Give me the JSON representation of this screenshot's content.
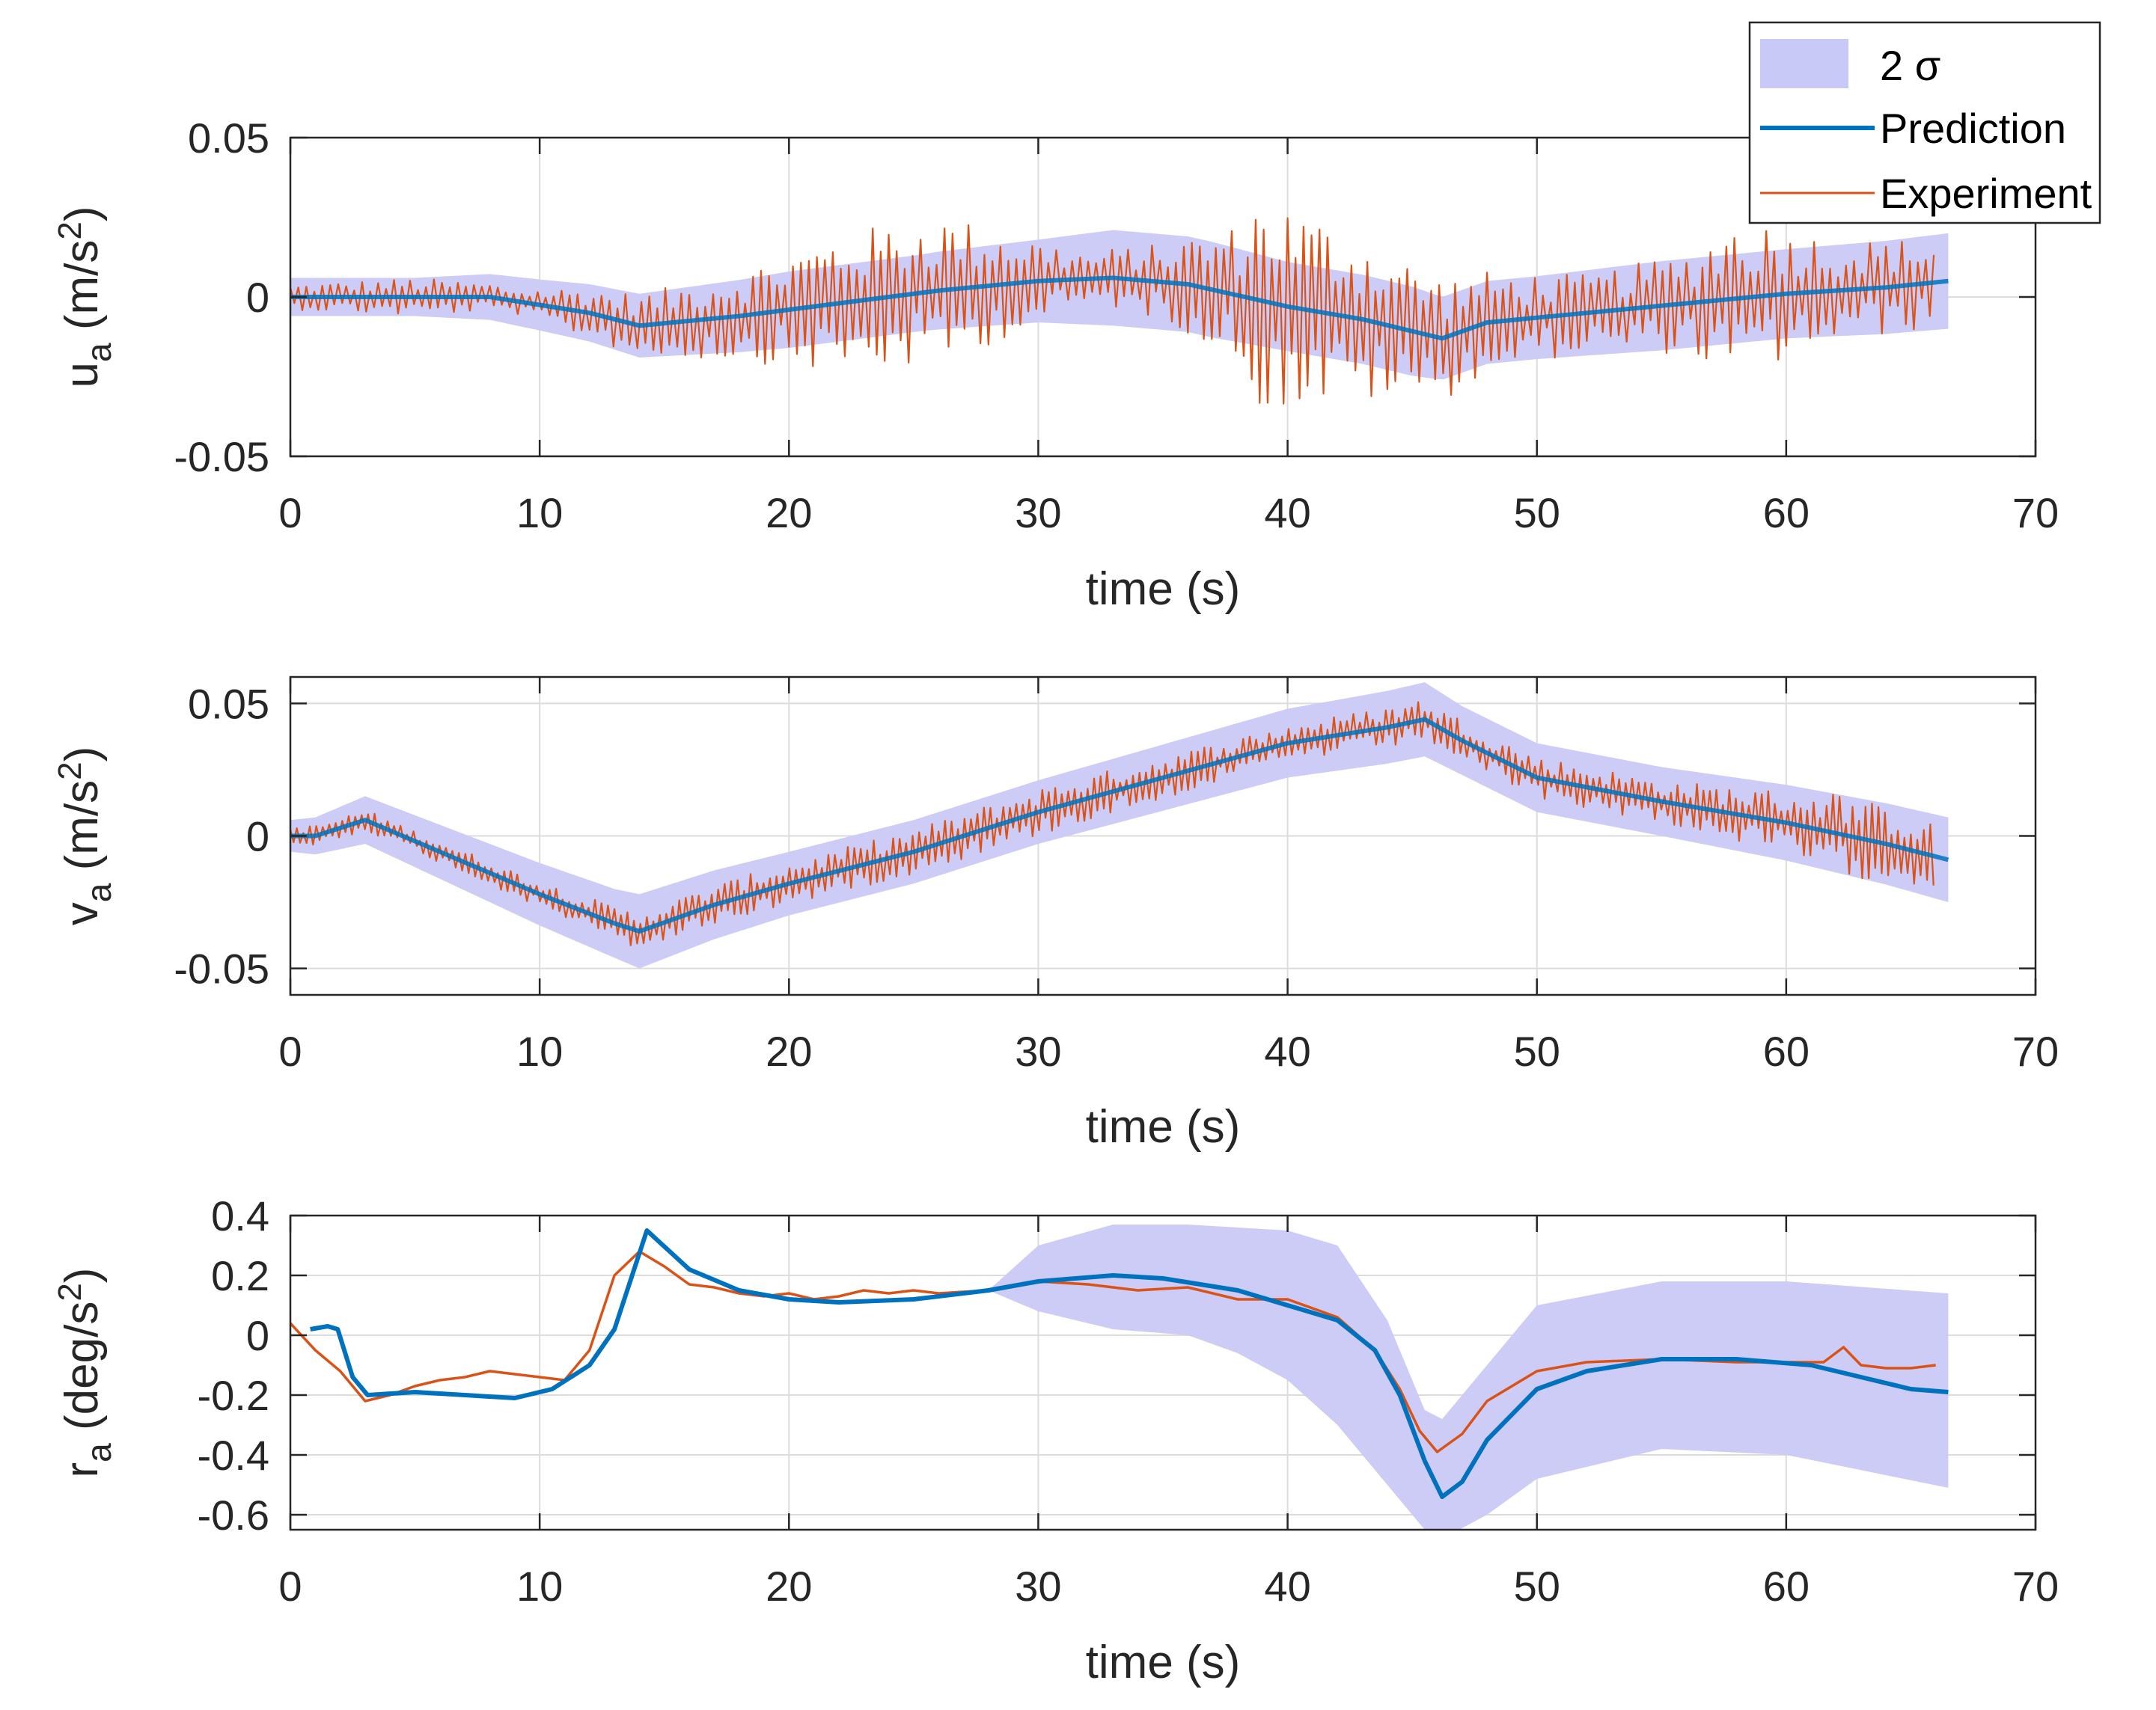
{
  "colors": {
    "band": "#c9c9f7",
    "prediction": "#0072bd",
    "experiment": "#d95319",
    "axis": "#262626",
    "grid": "#dcdcdc"
  },
  "legend": {
    "band_label": "2 σ",
    "prediction_label": "Prediction",
    "experiment_label": "Experiment",
    "placement": "top-right"
  },
  "chart_data": [
    {
      "type": "line",
      "id": "ua",
      "ylabel_main": "u",
      "ylabel_sub": "a",
      "ylabel_unit_pre": " (m/s",
      "ylabel_unit_sup": "2",
      "ylabel_unit_post": ")",
      "xlabel": "time (s)",
      "xlim": [
        0,
        70
      ],
      "ylim": [
        -0.05,
        0.05
      ],
      "xticks": [
        0,
        10,
        20,
        30,
        40,
        50,
        60,
        70
      ],
      "xtick_labels": [
        "0",
        "10",
        "20",
        "30",
        "40",
        "50",
        "60",
        "70"
      ],
      "yticks": [
        -0.05,
        0,
        0.05
      ],
      "ytick_labels": [
        "-0.05",
        "0",
        "0.05"
      ],
      "grid": true,
      "prediction": {
        "x": [
          0,
          3,
          8,
          12,
          14,
          18,
          22,
          26,
          30,
          33,
          36,
          40,
          43,
          46.2,
          48,
          52,
          56,
          60,
          64,
          66.5
        ],
        "y": [
          0,
          0,
          0,
          -0.005,
          -0.009,
          -0.006,
          -0.002,
          0.002,
          0.005,
          0.006,
          0.004,
          -0.003,
          -0.007,
          -0.013,
          -0.008,
          -0.005,
          -0.002,
          0.001,
          0.003,
          0.005
        ]
      },
      "band": {
        "x": [
          0,
          5,
          10,
          14,
          20,
          25,
          30,
          33,
          37,
          40,
          45,
          46.2,
          50,
          55,
          60,
          66.5
        ],
        "half_width": [
          0.006,
          0.006,
          0.008,
          0.01,
          0.012,
          0.012,
          0.013,
          0.015,
          0.015,
          0.014,
          0.014,
          0.013,
          0.013,
          0.014,
          0.014,
          0.015
        ]
      },
      "experiment": {
        "noise_x": [
          0,
          5,
          9,
          12,
          18,
          22,
          26,
          29,
          32,
          35,
          38,
          39,
          42,
          45,
          48,
          52,
          56,
          58,
          62,
          66
        ],
        "noise_amp": [
          0.004,
          0.006,
          0.004,
          0.008,
          0.014,
          0.022,
          0.024,
          0.016,
          0.008,
          0.012,
          0.022,
          0.035,
          0.028,
          0.022,
          0.016,
          0.012,
          0.016,
          0.026,
          0.016,
          0.014
        ],
        "period": 0.32,
        "x_end": 66
      }
    },
    {
      "type": "line",
      "id": "va",
      "ylabel_main": "v",
      "ylabel_sub": "a",
      "ylabel_unit_pre": " (m/s",
      "ylabel_unit_sup": "2",
      "ylabel_unit_post": ")",
      "xlabel": "time (s)",
      "xlim": [
        0,
        70
      ],
      "ylim": [
        -0.06,
        0.06
      ],
      "xticks": [
        0,
        10,
        20,
        30,
        40,
        50,
        60,
        70
      ],
      "xtick_labels": [
        "0",
        "10",
        "20",
        "30",
        "40",
        "50",
        "60",
        "70"
      ],
      "yticks": [
        -0.05,
        0,
        0.05
      ],
      "ytick_labels": [
        "-0.05",
        "0",
        "0.05"
      ],
      "grid": true,
      "prediction": {
        "x": [
          0,
          1,
          3,
          6,
          10,
          13,
          14,
          17,
          20,
          25,
          30,
          35,
          40,
          44,
          45.5,
          47,
          50,
          55,
          60,
          64,
          66.5
        ],
        "y": [
          0,
          0,
          0.006,
          -0.006,
          -0.022,
          -0.033,
          -0.036,
          -0.026,
          -0.018,
          -0.006,
          0.009,
          0.022,
          0.035,
          0.041,
          0.044,
          0.036,
          0.022,
          0.013,
          0.005,
          -0.003,
          -0.009
        ]
      },
      "band": {
        "x": [
          0,
          3,
          8,
          13,
          14,
          20,
          30,
          40,
          45.5,
          47,
          55,
          66.5
        ],
        "half_width": [
          0.006,
          0.009,
          0.011,
          0.013,
          0.014,
          0.012,
          0.012,
          0.013,
          0.014,
          0.013,
          0.013,
          0.016
        ]
      },
      "experiment": {
        "noise_x": [
          0,
          5,
          10,
          14,
          20,
          30,
          40,
          45,
          50,
          55,
          60,
          62,
          66
        ],
        "noise_amp": [
          0.004,
          0.004,
          0.005,
          0.007,
          0.008,
          0.009,
          0.007,
          0.008,
          0.008,
          0.008,
          0.012,
          0.016,
          0.012
        ],
        "period": 0.26,
        "x_end": 66
      }
    },
    {
      "type": "line",
      "id": "ra",
      "ylabel_main": "r",
      "ylabel_sub": "a",
      "ylabel_unit_pre": " (deg/s",
      "ylabel_unit_sup": "2",
      "ylabel_unit_post": ")",
      "xlabel": "time (s)",
      "xlim": [
        0,
        70
      ],
      "ylim": [
        -0.65,
        0.4
      ],
      "xticks": [
        0,
        10,
        20,
        30,
        40,
        50,
        60,
        70
      ],
      "xtick_labels": [
        "0",
        "10",
        "20",
        "30",
        "40",
        "50",
        "60",
        "70"
      ],
      "yticks": [
        -0.6,
        -0.4,
        -0.2,
        0,
        0.2,
        0.4
      ],
      "ytick_labels": [
        "-0.6",
        "-0.4",
        "-0.2",
        "0",
        "0.2",
        "0.4"
      ],
      "grid": true,
      "prediction": {
        "x": [
          0.8,
          1.5,
          1.9,
          2.5,
          3.1,
          5,
          7,
          9,
          10.5,
          12,
          13,
          14.3,
          16,
          18,
          20,
          22,
          25,
          28,
          30,
          33,
          35,
          38,
          40,
          42,
          43.5,
          44.5,
          45.5,
          46.2,
          47,
          48,
          50,
          52,
          55,
          58,
          61,
          63,
          65,
          66.5
        ],
        "y": [
          0.02,
          0.03,
          0.02,
          -0.14,
          -0.2,
          -0.19,
          -0.2,
          -0.21,
          -0.18,
          -0.1,
          0.02,
          0.35,
          0.22,
          0.15,
          0.12,
          0.11,
          0.12,
          0.15,
          0.18,
          0.2,
          0.19,
          0.15,
          0.1,
          0.05,
          -0.05,
          -0.2,
          -0.42,
          -0.54,
          -0.49,
          -0.35,
          -0.18,
          -0.12,
          -0.08,
          -0.08,
          -0.1,
          -0.14,
          -0.18,
          -0.19
        ]
      },
      "band": {
        "x": [
          28,
          30,
          33,
          36,
          38,
          40,
          42,
          44,
          45.5,
          46.2,
          48,
          50,
          55,
          60,
          66.5
        ],
        "upper": [
          0.15,
          0.3,
          0.37,
          0.37,
          0.36,
          0.35,
          0.3,
          0.05,
          -0.25,
          -0.28,
          -0.1,
          0.1,
          0.18,
          0.18,
          0.14
        ],
        "lower": [
          0.15,
          0.08,
          0.02,
          0.0,
          -0.06,
          -0.15,
          -0.3,
          -0.5,
          -0.65,
          -0.68,
          -0.6,
          -0.48,
          -0.38,
          -0.4,
          -0.51
        ],
        "start_x": 28
      },
      "experiment": {
        "x": [
          0,
          1,
          2,
          3,
          4,
          5,
          6,
          7,
          8,
          9,
          10,
          11,
          12,
          13,
          14,
          15,
          16,
          17,
          18,
          19,
          20,
          21,
          22,
          23,
          24,
          25,
          26,
          28,
          30,
          32,
          34,
          36,
          38,
          40,
          42,
          43.5,
          44.5,
          45.3,
          46,
          47,
          48,
          50,
          52,
          55,
          58,
          60,
          61.5,
          62.3,
          63,
          64,
          65,
          66
        ],
        "y": [
          0.04,
          -0.05,
          -0.12,
          -0.22,
          -0.2,
          -0.17,
          -0.15,
          -0.14,
          -0.12,
          -0.13,
          -0.14,
          -0.15,
          -0.05,
          0.2,
          0.28,
          0.23,
          0.17,
          0.16,
          0.14,
          0.13,
          0.14,
          0.12,
          0.13,
          0.15,
          0.14,
          0.15,
          0.14,
          0.15,
          0.18,
          0.17,
          0.15,
          0.16,
          0.12,
          0.12,
          0.06,
          -0.05,
          -0.18,
          -0.32,
          -0.39,
          -0.33,
          -0.22,
          -0.12,
          -0.09,
          -0.08,
          -0.09,
          -0.09,
          -0.09,
          -0.04,
          -0.1,
          -0.11,
          -0.11,
          -0.1
        ]
      }
    }
  ]
}
